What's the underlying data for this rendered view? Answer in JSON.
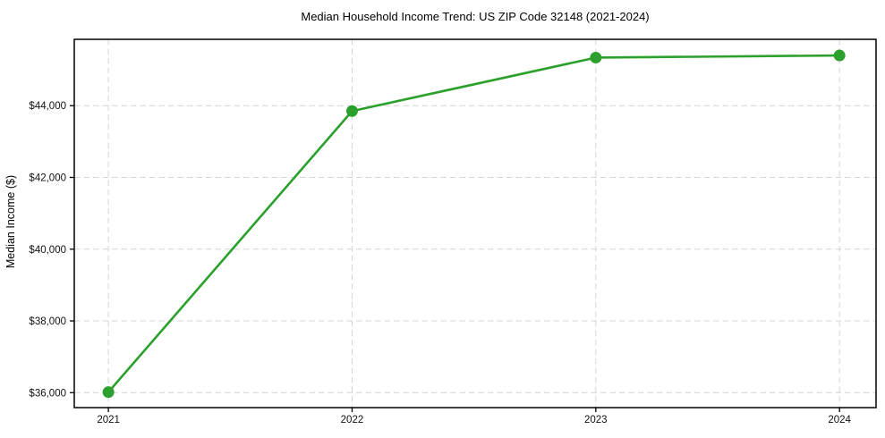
{
  "chart": {
    "title": "Median Household Income Trend: US ZIP Code 32148 (2021-2024)",
    "ylabel": "Median Income ($)"
  },
  "chart_data": {
    "type": "line",
    "title": "Median Household Income Trend: US ZIP Code 32148 (2021-2024)",
    "xlabel": "",
    "ylabel": "Median Income ($)",
    "categories": [
      "2021",
      "2022",
      "2023",
      "2024"
    ],
    "x": [
      2021,
      2022,
      2023,
      2024
    ],
    "series": [
      {
        "name": "Median household income",
        "values": [
          36015,
          43850,
          45340,
          45400
        ],
        "color": "#2ca02c",
        "marker": "circle"
      }
    ],
    "yticks": [
      36000,
      38000,
      40000,
      42000,
      44000
    ],
    "ytick_labels": [
      "$36,000",
      "$38,000",
      "$40,000",
      "$42,000",
      "$44,000"
    ],
    "xlim": [
      2020.86,
      2024.15
    ],
    "ylim": [
      35583,
      45850
    ],
    "grid": true,
    "grid_style": "dashed",
    "legend": "none",
    "line_width": 2.6,
    "marker_size": 6.5
  },
  "colors": {
    "line": "#2ca02c",
    "grid": "#d4d4d4",
    "axis": "#000000",
    "background": "#ffffff"
  }
}
